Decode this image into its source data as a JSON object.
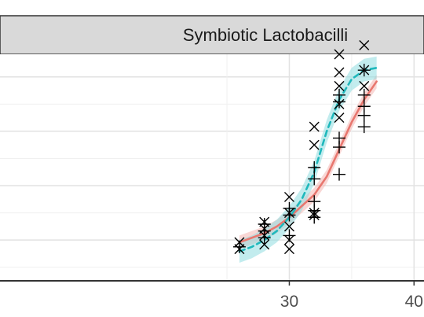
{
  "chart_data": {
    "type": "scatter",
    "title": "Symbiotic Lactobacilli",
    "xlabel": "",
    "ylabel": "",
    "xlim": [
      6.8,
      40.8
    ],
    "ylim": [
      0,
      1
    ],
    "grid": true,
    "x_ticks": [
      30,
      40
    ],
    "x_tick_labels": [
      "30",
      "40"
    ],
    "x_minor_ticks": [
      25,
      35
    ],
    "y_ticks": [
      0.18,
      0.42,
      0.66,
      0.9
    ],
    "y_minor_ticks": [
      0.06,
      0.3,
      0.54,
      0.78
    ],
    "points_x": [
      {
        "x": 26,
        "y": 0.14
      },
      {
        "x": 26,
        "y": 0.17
      },
      {
        "x": 28,
        "y": 0.16
      },
      {
        "x": 28,
        "y": 0.2
      },
      {
        "x": 28,
        "y": 0.23
      },
      {
        "x": 28,
        "y": 0.26
      },
      {
        "x": 30,
        "y": 0.14
      },
      {
        "x": 30,
        "y": 0.18
      },
      {
        "x": 30,
        "y": 0.24
      },
      {
        "x": 30,
        "y": 0.3
      },
      {
        "x": 30,
        "y": 0.37
      },
      {
        "x": 32,
        "y": 0.29
      },
      {
        "x": 32,
        "y": 0.3
      },
      {
        "x": 32,
        "y": 0.6
      },
      {
        "x": 32,
        "y": 0.68
      },
      {
        "x": 34,
        "y": 0.72
      },
      {
        "x": 34,
        "y": 0.78
      },
      {
        "x": 34,
        "y": 0.86
      },
      {
        "x": 34,
        "y": 0.92
      },
      {
        "x": 34,
        "y": 1.0
      },
      {
        "x": 36,
        "y": 0.86
      },
      {
        "x": 36,
        "y": 0.93
      },
      {
        "x": 36,
        "y": 1.04
      }
    ],
    "points_plus": [
      {
        "x": 26,
        "y": 0.15
      },
      {
        "x": 28,
        "y": 0.19
      },
      {
        "x": 28,
        "y": 0.22
      },
      {
        "x": 28,
        "y": 0.25
      },
      {
        "x": 30,
        "y": 0.2
      },
      {
        "x": 30,
        "y": 0.29
      },
      {
        "x": 30,
        "y": 0.32
      },
      {
        "x": 32,
        "y": 0.28
      },
      {
        "x": 32,
        "y": 0.31
      },
      {
        "x": 32,
        "y": 0.35
      },
      {
        "x": 32,
        "y": 0.45
      },
      {
        "x": 32,
        "y": 0.5
      },
      {
        "x": 34,
        "y": 0.47
      },
      {
        "x": 34,
        "y": 0.59
      },
      {
        "x": 34,
        "y": 0.63
      },
      {
        "x": 34,
        "y": 0.79
      },
      {
        "x": 34,
        "y": 0.82
      },
      {
        "x": 36,
        "y": 0.68
      },
      {
        "x": 36,
        "y": 0.73
      },
      {
        "x": 36,
        "y": 0.77
      },
      {
        "x": 36,
        "y": 0.82
      },
      {
        "x": 36,
        "y": 0.93
      }
    ],
    "series": [
      {
        "style": "solid",
        "color": "#E8776F",
        "band_color": "#F4B6B2",
        "values": [
          {
            "x": 26,
            "y": 0.17
          },
          {
            "x": 27,
            "y": 0.19
          },
          {
            "x": 28,
            "y": 0.21
          },
          {
            "x": 29,
            "y": 0.24
          },
          {
            "x": 30,
            "y": 0.28
          },
          {
            "x": 31,
            "y": 0.33
          },
          {
            "x": 32,
            "y": 0.38
          },
          {
            "x": 33,
            "y": 0.46
          },
          {
            "x": 34,
            "y": 0.58
          },
          {
            "x": 35,
            "y": 0.7
          },
          {
            "x": 36,
            "y": 0.8
          },
          {
            "x": 37,
            "y": 0.88
          }
        ],
        "band_halfwidth": 0.03
      },
      {
        "style": "dashed",
        "color": "#1FB8BC",
        "band_color": "#8FDDE0",
        "values": [
          {
            "x": 26,
            "y": 0.13
          },
          {
            "x": 27,
            "y": 0.15
          },
          {
            "x": 28,
            "y": 0.18
          },
          {
            "x": 29,
            "y": 0.22
          },
          {
            "x": 30,
            "y": 0.28
          },
          {
            "x": 31,
            "y": 0.36
          },
          {
            "x": 32,
            "y": 0.48
          },
          {
            "x": 33,
            "y": 0.66
          },
          {
            "x": 34,
            "y": 0.8
          },
          {
            "x": 35,
            "y": 0.89
          },
          {
            "x": 36,
            "y": 0.93
          },
          {
            "x": 37,
            "y": 0.94
          }
        ],
        "band_halfwidth": 0.05
      }
    ]
  }
}
